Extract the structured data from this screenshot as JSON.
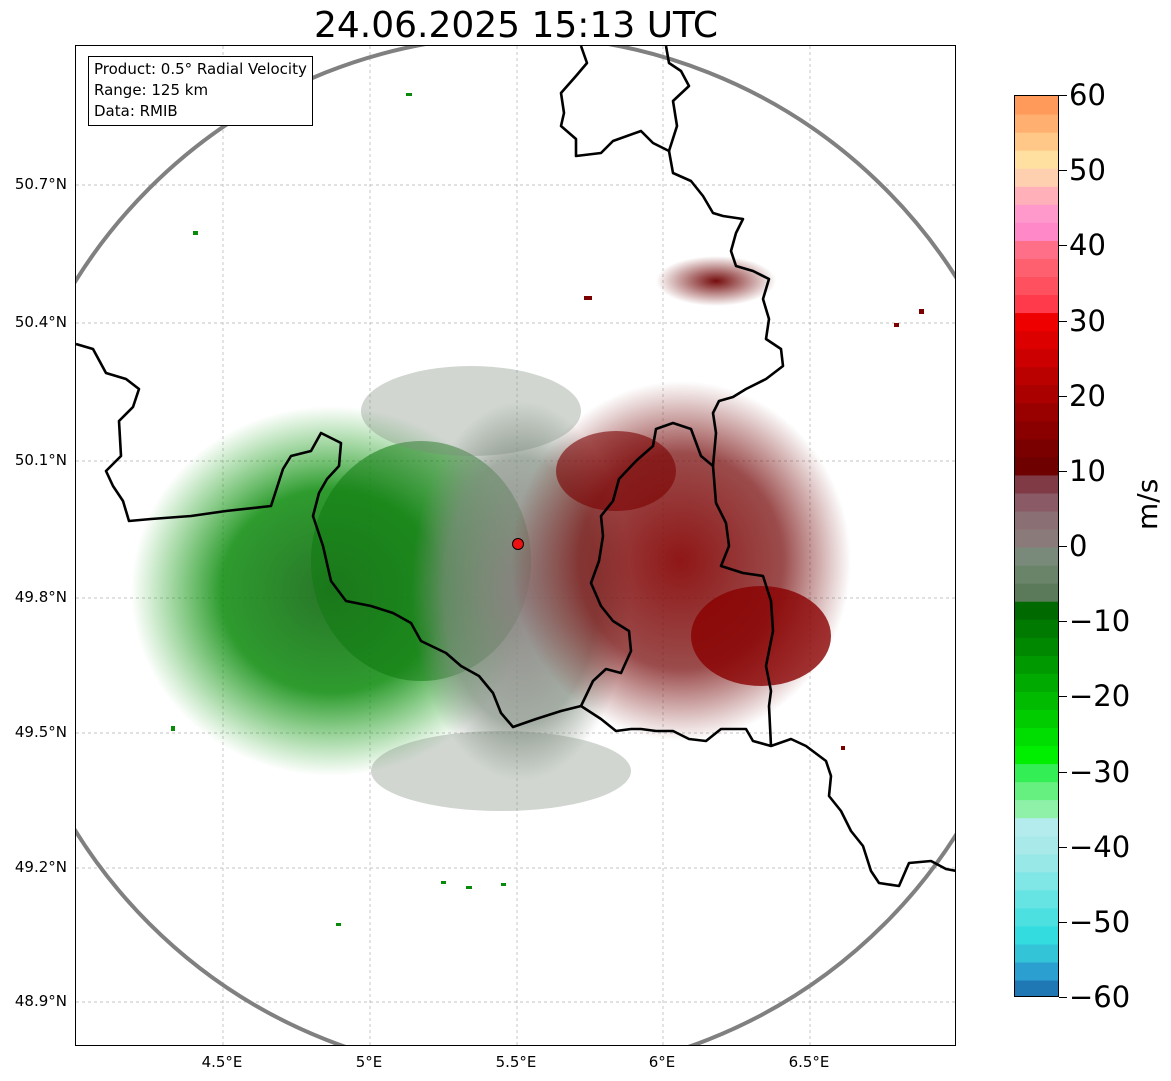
{
  "title": "24.06.2025 15:13 UTC",
  "info": {
    "product": "Product: 0.5° Radial Velocity",
    "range": "Range: 125 km",
    "data": "Data: RMIB"
  },
  "lat_labels": [
    "50.7°N",
    "50.4°N",
    "50.1°N",
    "49.8°N",
    "49.5°N",
    "49.2°N",
    "48.9°N"
  ],
  "lon_labels": [
    "4.5°E",
    "5°E",
    "5.5°E",
    "6°E",
    "6.5°E"
  ],
  "colorbar": {
    "unit": "m/s",
    "min": -60,
    "max": 60,
    "tick_labels": [
      "60",
      "50",
      "40",
      "30",
      "20",
      "10",
      "0",
      "−10",
      "−20",
      "−30",
      "−40",
      "−50",
      "−60"
    ],
    "colors": [
      "#1f77b4",
      "#2b9fd0",
      "#33c4d8",
      "#33dddf",
      "#4de0e0",
      "#66e4e4",
      "#80e6e6",
      "#99e8e8",
      "#aae9ea",
      "#b4ecee",
      "#8ff0a8",
      "#66f080",
      "#33ee55",
      "#00ee00",
      "#00dd00",
      "#00cc00",
      "#00bb00",
      "#00aa00",
      "#009900",
      "#008800",
      "#007a00",
      "#006a00",
      "#5a7a5a",
      "#6a846a",
      "#7a8a7a",
      "#8a7a7a",
      "#8a6f74",
      "#8a5a66",
      "#7f3a45",
      "#6e0000",
      "#7a0000",
      "#8a0000",
      "#990000",
      "#aa0000",
      "#bb0000",
      "#cc0000",
      "#dd0000",
      "#ee0000",
      "#ff3b4b",
      "#ff5060",
      "#ff6070",
      "#ff7088",
      "#ff88c8",
      "#ff99cc",
      "#ffb0b8",
      "#ffd0b0",
      "#ffe0a0",
      "#ffc888",
      "#ffb070",
      "#ff9a5a"
    ]
  },
  "map": {
    "radar_site": {
      "lon": 5.5,
      "lat": 49.914
    },
    "range_ring_color": "#808080",
    "border_color": "#000000",
    "approaching_color": "#008800",
    "receding_color": "#7a0000"
  }
}
